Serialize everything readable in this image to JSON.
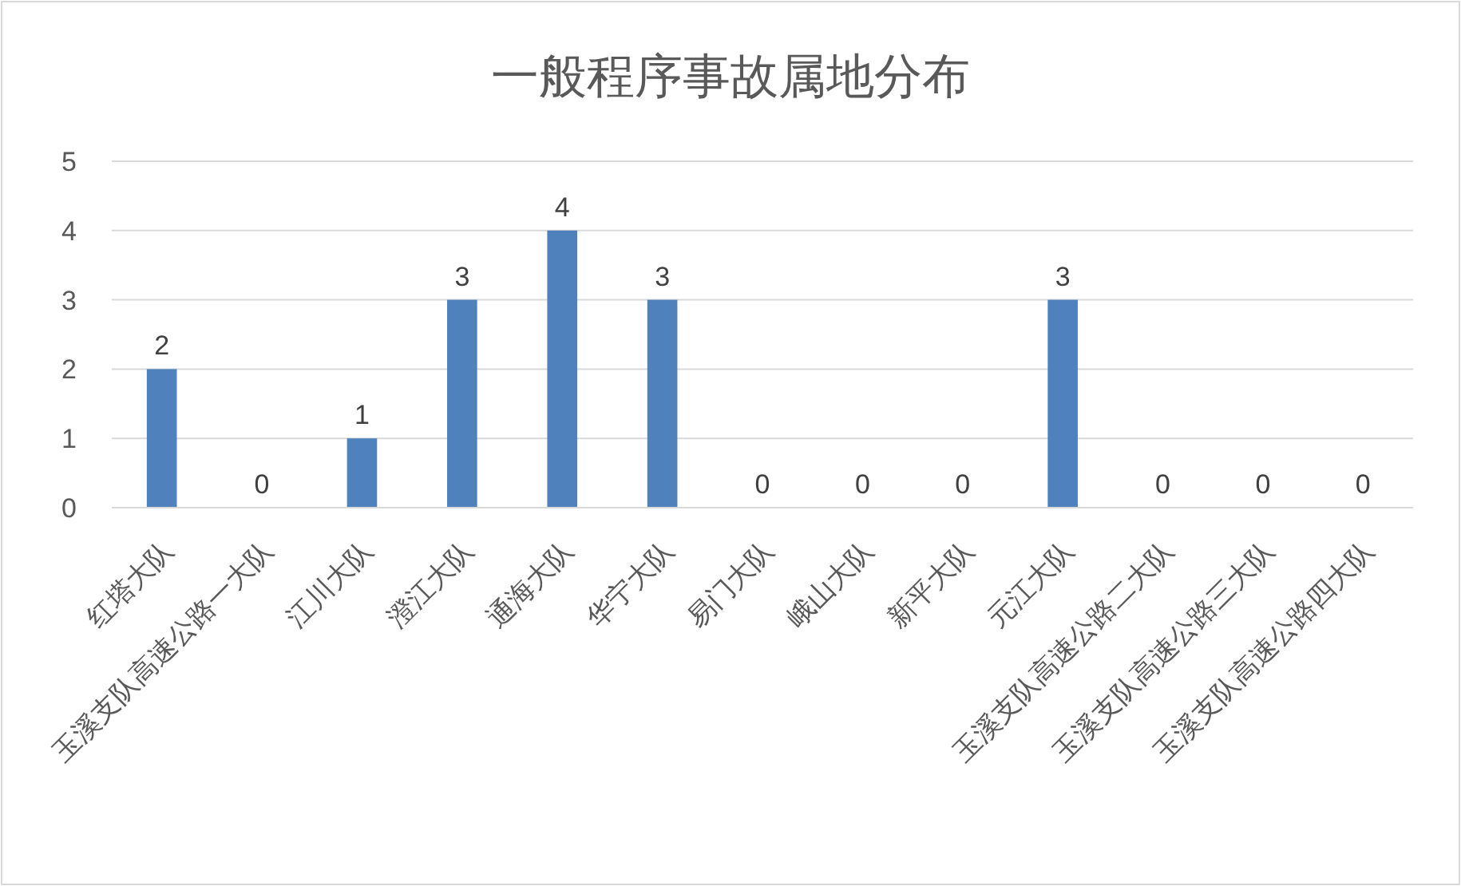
{
  "chart_data": {
    "type": "bar",
    "title": "一般程序事故属地分布",
    "categories": [
      "红塔大队",
      "玉溪支队高速公路一大队",
      "江川大队",
      "澄江大队",
      "通海大队",
      "华宁大队",
      "易门大队",
      "峨山大队",
      "新平大队",
      "元江大队",
      "玉溪支队高速公路二大队",
      "玉溪支队高速公路三大队",
      "玉溪支队高速公路四大队"
    ],
    "values": [
      2,
      0,
      1,
      3,
      4,
      3,
      0,
      0,
      0,
      3,
      0,
      0,
      0
    ],
    "color": "#4f81bd",
    "ylim": [
      0,
      5
    ],
    "yticks": [
      0,
      1,
      2,
      3,
      4,
      5
    ],
    "grid": "y",
    "data_labels": true
  }
}
